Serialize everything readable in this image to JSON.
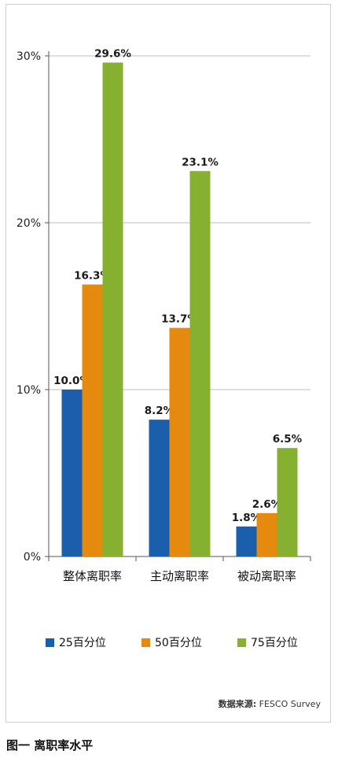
{
  "chart_data": {
    "type": "bar",
    "categories": [
      "整体离职率",
      "主动离职率",
      "被动离职率"
    ],
    "series": [
      {
        "name": "25百分位",
        "values": [
          10.0,
          8.2,
          1.8
        ],
        "labels": [
          "10.0%",
          "8.2%",
          "1.8%"
        ],
        "color": "#1b5eab"
      },
      {
        "name": "50百分位",
        "values": [
          16.3,
          13.7,
          2.6
        ],
        "labels": [
          "16.3%",
          "13.7%",
          "2.6%"
        ],
        "color": "#e58a0f"
      },
      {
        "name": "75百分位",
        "values": [
          29.6,
          23.1,
          6.5
        ],
        "labels": [
          "29.6%",
          "23.1%",
          "6.5%"
        ],
        "color": "#86b02f"
      }
    ],
    "y_ticks": [
      0,
      10,
      20,
      30
    ],
    "y_tick_labels": [
      "0%",
      "10%",
      "20%",
      "30%"
    ],
    "ylim": [
      0,
      30
    ],
    "grid": true,
    "legend_position": "bottom"
  },
  "source": {
    "label": "数据来源:",
    "value": "FESCO Survey"
  },
  "caption": "图一  离职率水平"
}
